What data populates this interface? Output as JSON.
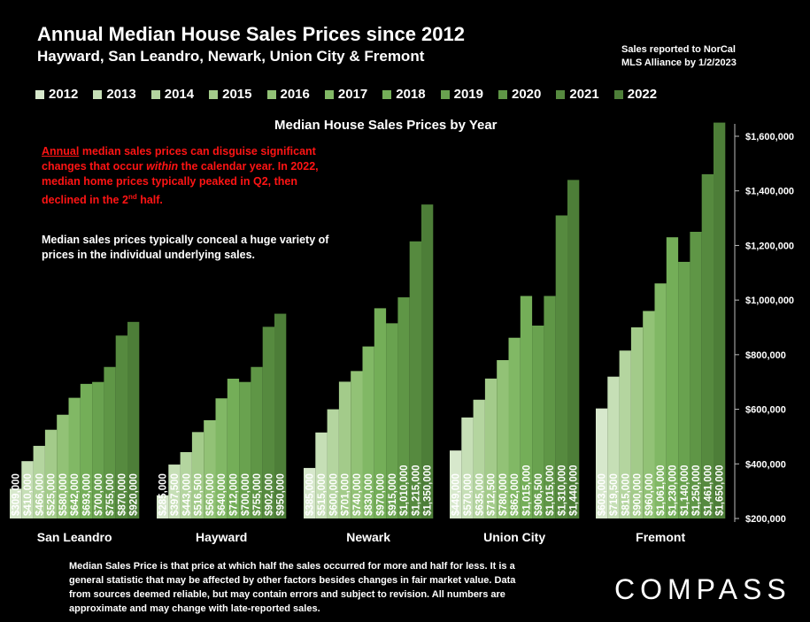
{
  "title": "Annual Median House Sales Prices since 2012",
  "subtitle": "Hayward, San Leandro, Newark, Union City & Fremont",
  "source_note": [
    "Sales reported to NorCal",
    "MLS Alliance by 1/2/2023"
  ],
  "notes": {
    "red_lead": "Annual",
    "red_a": " median sales prices can disguise significant changes that occur ",
    "red_italic": "within",
    "red_b": " the calendar year. In 2022, median home prices typically peaked in Q2, then declined in the 2",
    "red_sup": "nd",
    "red_c": " half.",
    "white": "Median sales prices typically conceal a huge variety of prices in the individual underlying sales."
  },
  "footer": "Median Sales Price is that price at which half the sales occurred for more and half for less. It is a general statistic that may be affected by other factors besides changes in fair market value. Data from sources deemed reliable, but may contain errors and subject to revision. All numbers are approximate and may change with late-reported sales.",
  "logo": "COMPASS",
  "chart_data": {
    "type": "bar",
    "title": "Median House Sales Prices by Year",
    "categories": [
      "San Leandro",
      "Hayward",
      "Newark",
      "Union City",
      "Fremont"
    ],
    "ylim": [
      200000,
      1700000
    ],
    "yticks": [
      "$200,000",
      "$400,000",
      "$600,000",
      "$800,000",
      "$1,000,000",
      "$1,200,000",
      "$1,400,000",
      "$1,600,000"
    ],
    "ytick_values": [
      200000,
      400000,
      600000,
      800000,
      1000000,
      1200000,
      1400000,
      1600000
    ],
    "grid": false,
    "legend_position": "top",
    "series": [
      {
        "name": "2012",
        "color": "#d7e8cc",
        "values": [
          309000,
          285000,
          385000,
          449000,
          603000
        ],
        "labels": [
          "$309,000",
          "$285,000",
          "$385,000",
          "$449,000",
          "$603,000"
        ]
      },
      {
        "name": "2013",
        "color": "#c6dfb6",
        "values": [
          410000,
          397500,
          515000,
          570000,
          719500
        ],
        "labels": [
          "$410,000",
          "$397,500",
          "$515,000",
          "$570,000",
          "$719,500"
        ]
      },
      {
        "name": "2014",
        "color": "#b4d59f",
        "values": [
          466000,
          443000,
          600000,
          635000,
          815000
        ],
        "labels": [
          "$466,000",
          "$443,000",
          "$600,000",
          "$635,000",
          "$815,000"
        ]
      },
      {
        "name": "2015",
        "color": "#a3cb8a",
        "values": [
          525000,
          516500,
          701000,
          712500,
          900000
        ],
        "labels": [
          "$525,000",
          "$516,500",
          "$701,000",
          "$712,500",
          "$900,000"
        ]
      },
      {
        "name": "2016",
        "color": "#92c276",
        "values": [
          580000,
          560000,
          740000,
          780000,
          960000
        ],
        "labels": [
          "$580,000",
          "$560,000",
          "$740,000",
          "$780,000",
          "$960,000"
        ]
      },
      {
        "name": "2017",
        "color": "#81b865",
        "values": [
          642000,
          640000,
          830000,
          862000,
          1061000
        ],
        "labels": [
          "$642,000",
          "$640,000",
          "$830,000",
          "$862,000",
          "$1,061,000"
        ]
      },
      {
        "name": "2018",
        "color": "#74ae58",
        "values": [
          693000,
          712000,
          970000,
          1015000,
          1230000
        ],
        "labels": [
          "$693,000",
          "$712,000",
          "$970,000",
          "$1,015,000",
          "$1,230,000"
        ]
      },
      {
        "name": "2019",
        "color": "#69a24f",
        "values": [
          700000,
          700000,
          915000,
          906500,
          1140000
        ],
        "labels": [
          "$700,000",
          "$700,000",
          "$915,000",
          "$906,500",
          "$1,140,000"
        ]
      },
      {
        "name": "2020",
        "color": "#5f9646",
        "values": [
          755000,
          755000,
          1010000,
          1015000,
          1250000
        ],
        "labels": [
          "$755,000",
          "$755,000",
          "$1,010,000",
          "$1,015,000",
          "$1,250,000"
        ]
      },
      {
        "name": "2021",
        "color": "#568a3f",
        "values": [
          870000,
          902000,
          1215000,
          1310000,
          1461000
        ],
        "labels": [
          "$870,000",
          "$902,000",
          "$1,215,000",
          "$1,310,000",
          "$1,461,000"
        ]
      },
      {
        "name": "2022",
        "color": "#4d7e38",
        "values": [
          920000,
          950000,
          1350000,
          1440000,
          1650000
        ],
        "labels": [
          "$920,000",
          "$950,000",
          "$1,350,000",
          "$1,440,000",
          "$1,650,000"
        ]
      }
    ]
  }
}
